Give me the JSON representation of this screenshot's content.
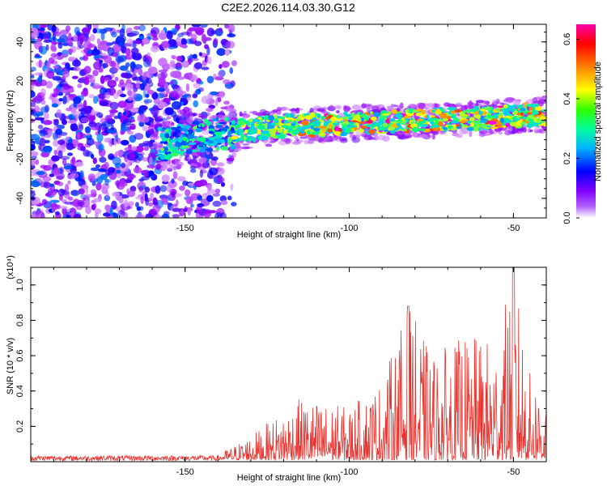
{
  "title": "C2E2.2026.114.03.30.G12",
  "chart_data": [
    {
      "type": "heatmap",
      "xlabel": "Height of straight line (km)",
      "ylabel": "Frequency (Hz)",
      "xlim": [
        -197,
        -40
      ],
      "ylim": [
        -50,
        49
      ],
      "xticks": [
        -150,
        -100,
        -50
      ],
      "yticks": [
        -40,
        -20,
        0,
        20,
        40
      ],
      "band_center_hz_at_x": [
        {
          "x": -155,
          "y": -12
        },
        {
          "x": -140,
          "y": -7
        },
        {
          "x": -120,
          "y": -3
        },
        {
          "x": -100,
          "y": -2
        },
        {
          "x": -80,
          "y": 0
        },
        {
          "x": -60,
          "y": 1
        },
        {
          "x": -40,
          "y": 3
        }
      ],
      "noise_region_x": [
        -197,
        -135
      ],
      "colorbar": {
        "label": "Normalized spectral amplitude",
        "range": [
          0.0,
          0.65
        ],
        "ticks": [
          "0.0",
          "0.2",
          "0.4",
          "0.6"
        ],
        "colormap": [
          "#ffffff",
          "#9a00ff",
          "#0000ff",
          "#00c8ff",
          "#00ff80",
          "#ffff00",
          "#ff8000",
          "#ff0000",
          "#ff00ff"
        ]
      }
    },
    {
      "type": "line",
      "xlabel": "Height of straight line (km)",
      "ylabel": "SNR (10 * v/v)",
      "y_scale_label": "(x10⁴)",
      "xlim": [
        -197,
        -40
      ],
      "ylim": [
        0,
        1.1
      ],
      "xticks": [
        -150,
        -100,
        -50
      ],
      "yticks": [
        0.2,
        0.4,
        0.6,
        0.8,
        1.0
      ],
      "color": "#e8322d",
      "series_envelope": [
        {
          "x": -197,
          "y": 0.02
        },
        {
          "x": -140,
          "y": 0.03
        },
        {
          "x": -130,
          "y": 0.14
        },
        {
          "x": -115,
          "y": 0.35
        },
        {
          "x": -100,
          "y": 0.3
        },
        {
          "x": -90,
          "y": 0.45
        },
        {
          "x": -82,
          "y": 0.88
        },
        {
          "x": -75,
          "y": 0.6
        },
        {
          "x": -65,
          "y": 0.7
        },
        {
          "x": -55,
          "y": 0.68
        },
        {
          "x": -50,
          "y": 1.1
        },
        {
          "x": -45,
          "y": 0.5
        },
        {
          "x": -40,
          "y": 0.4
        }
      ]
    }
  ]
}
